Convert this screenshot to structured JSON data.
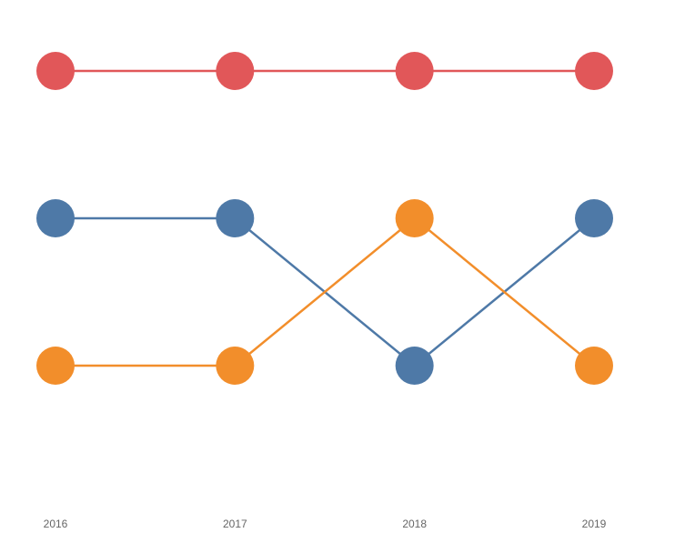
{
  "chart_data": {
    "type": "bump",
    "categories": [
      "2016",
      "2017",
      "2018",
      "2019"
    ],
    "series": [
      {
        "color": "#e15759",
        "values": [
          1,
          1,
          1,
          1
        ]
      },
      {
        "color": "#4e79a7",
        "values": [
          2,
          2,
          3,
          2
        ]
      },
      {
        "color": "#f28e2b",
        "values": [
          3,
          3,
          2,
          3
        ]
      }
    ],
    "ylim": [
      3.5,
      0.5
    ]
  }
}
